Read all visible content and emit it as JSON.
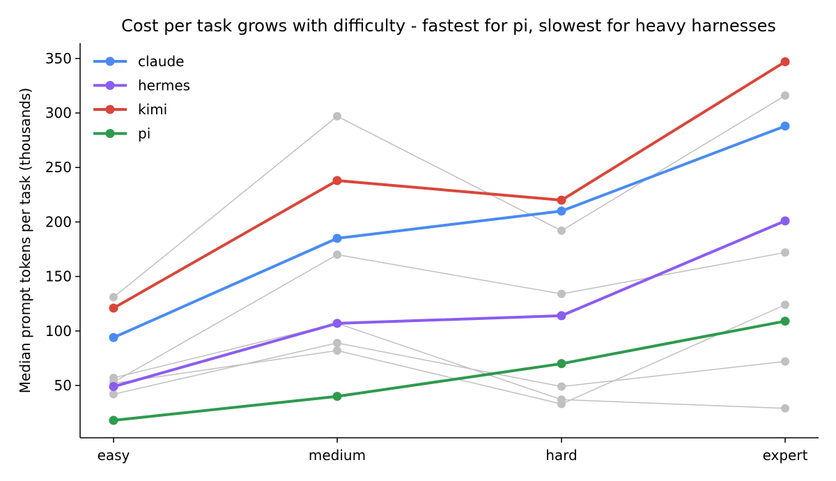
{
  "chart_data": {
    "type": "line",
    "title": "Cost per task grows with difficulty - fastest for pi, slowest for heavy harnesses",
    "xlabel": "",
    "ylabel": "Median prompt tokens per task (thousands)",
    "categories": [
      "easy",
      "medium",
      "hard",
      "expert"
    ],
    "ylim": [
      2,
      364
    ],
    "yticks": [
      50,
      100,
      150,
      200,
      250,
      300,
      350
    ],
    "grid": false,
    "legend_position": "top-left",
    "series": [
      {
        "name": "claude",
        "color": "#4a8bf0",
        "highlight": true,
        "values": [
          94,
          185,
          210,
          288
        ]
      },
      {
        "name": "hermes",
        "color": "#8b5cf0",
        "highlight": true,
        "values": [
          49,
          107,
          114,
          201
        ]
      },
      {
        "name": "kimi",
        "color": "#d9463b",
        "highlight": true,
        "values": [
          121,
          238,
          220,
          347
        ]
      },
      {
        "name": "pi",
        "color": "#2e9a4e",
        "highlight": true,
        "values": [
          18,
          40,
          70,
          109
        ]
      },
      {
        "highlight": false,
        "color": "#c0c0c0",
        "values": [
          131,
          297,
          192,
          316
        ]
      },
      {
        "highlight": false,
        "color": "#c0c0c0",
        "values": [
          53,
          170,
          134,
          172
        ]
      },
      {
        "highlight": false,
        "color": "#c0c0c0",
        "values": [
          57,
          107,
          37,
          29
        ]
      },
      {
        "highlight": false,
        "color": "#c0c0c0",
        "values": [
          42,
          89,
          49,
          72
        ]
      },
      {
        "highlight": false,
        "color": "#c0c0c0",
        "values": [
          52,
          82,
          33,
          124
        ]
      }
    ]
  }
}
